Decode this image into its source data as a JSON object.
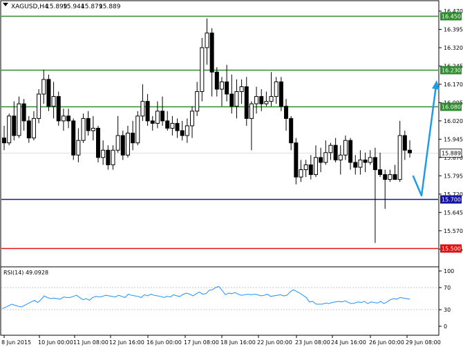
{
  "chart_data": [
    {
      "type": "candlestick",
      "symbol_title": "XAGUSD,H4",
      "ohlc_header": [
        "15.899",
        "15.944",
        "15.879",
        "15.889"
      ],
      "ylim": [
        15.425,
        16.47
      ],
      "y_ticks": [
        "16.470",
        "16.395",
        "16.320",
        "16.245",
        "16.170",
        "16.095",
        "16.020",
        "15.945",
        "15.870",
        "15.795",
        "15.720",
        "15.645",
        "15.570",
        "15.495"
      ],
      "x_ticks": [
        "8 Jun 2015",
        "10 Jun 00:00",
        "11 Jun 08:00",
        "12 Jun 16:00",
        "16 Jun 00:00",
        "17 Jun 08:00",
        "18 Jun 16:00",
        "22 Jun 00:00",
        "23 Jun 08:00",
        "24 Jun 16:00",
        "26 Jun 00:00",
        "29 Jun 08:00"
      ],
      "levels": [
        {
          "label": "16.450",
          "value": 16.45,
          "color": "#2e8b2e"
        },
        {
          "label": "16.230",
          "value": 16.23,
          "color": "#2e8b2e"
        },
        {
          "label": "16.080",
          "value": 16.08,
          "color": "#2e8b2e"
        },
        {
          "label": "15.700",
          "value": 15.7,
          "color": "#1414a0"
        },
        {
          "label": "15.500",
          "value": 15.5,
          "color": "#e01010"
        }
      ],
      "current_price": {
        "label": "15.889",
        "value": 15.889
      },
      "candles": [
        [
          15.95,
          16.0,
          15.9,
          15.93
        ],
        [
          15.93,
          16.05,
          15.92,
          16.04
        ],
        [
          16.04,
          16.1,
          15.94,
          15.96
        ],
        [
          15.96,
          16.12,
          15.95,
          16.09
        ],
        [
          16.09,
          16.11,
          15.98,
          16.02
        ],
        [
          16.02,
          16.04,
          15.93,
          15.95
        ],
        [
          15.95,
          16.06,
          15.94,
          16.03
        ],
        [
          16.03,
          16.15,
          16.01,
          16.13
        ],
        [
          16.13,
          16.23,
          16.09,
          16.19
        ],
        [
          16.19,
          16.21,
          16.06,
          16.08
        ],
        [
          16.08,
          16.18,
          16.03,
          16.12
        ],
        [
          16.12,
          16.14,
          16.0,
          16.02
        ],
        [
          16.02,
          16.07,
          15.98,
          16.04
        ],
        [
          16.04,
          16.07,
          15.99,
          16.02
        ],
        [
          16.02,
          16.03,
          15.86,
          15.88
        ],
        [
          15.88,
          15.99,
          15.85,
          15.94
        ],
        [
          15.94,
          16.05,
          15.93,
          16.03
        ],
        [
          16.03,
          16.06,
          15.96,
          15.98
        ],
        [
          15.98,
          16.04,
          15.94,
          15.99
        ],
        [
          15.99,
          16.0,
          15.85,
          15.87
        ],
        [
          15.87,
          15.94,
          15.84,
          15.9
        ],
        [
          15.9,
          15.92,
          15.82,
          15.84
        ],
        [
          15.84,
          15.92,
          15.82,
          15.9
        ],
        [
          15.9,
          16.04,
          15.89,
          15.96
        ],
        [
          15.96,
          15.98,
          15.86,
          15.88
        ],
        [
          15.88,
          16.0,
          15.87,
          15.97
        ],
        [
          15.97,
          16.02,
          15.9,
          15.93
        ],
        [
          15.93,
          16.06,
          15.92,
          16.04
        ],
        [
          16.04,
          16.17,
          16.02,
          16.1
        ],
        [
          16.1,
          16.13,
          16.0,
          16.02
        ],
        [
          16.02,
          16.04,
          15.98,
          16.01
        ],
        [
          16.01,
          16.1,
          15.99,
          16.06
        ],
        [
          16.06,
          16.12,
          16.0,
          16.02
        ],
        [
          16.02,
          16.06,
          15.98,
          15.99
        ],
        [
          15.99,
          16.04,
          15.96,
          16.01
        ],
        [
          16.01,
          16.03,
          15.95,
          15.98
        ],
        [
          15.98,
          16.02,
          15.94,
          15.96
        ],
        [
          15.96,
          16.03,
          15.93,
          16.0
        ],
        [
          16.0,
          16.08,
          15.95,
          16.06
        ],
        [
          16.06,
          16.18,
          16.04,
          16.14
        ],
        [
          16.14,
          16.36,
          16.1,
          16.32
        ],
        [
          16.32,
          16.44,
          16.25,
          16.38
        ],
        [
          16.38,
          16.4,
          16.12,
          16.22
        ],
        [
          16.22,
          16.24,
          16.12,
          16.15
        ],
        [
          16.15,
          16.2,
          16.08,
          16.18
        ],
        [
          16.18,
          16.25,
          16.1,
          16.13
        ],
        [
          16.13,
          16.21,
          16.05,
          16.08
        ],
        [
          16.08,
          16.19,
          16.03,
          16.14
        ],
        [
          16.14,
          16.19,
          16.09,
          16.16
        ],
        [
          16.16,
          16.2,
          16.0,
          16.03
        ],
        [
          16.03,
          16.1,
          15.9,
          16.09
        ],
        [
          16.09,
          16.16,
          16.05,
          16.12
        ],
        [
          16.12,
          16.15,
          16.06,
          16.09
        ],
        [
          16.09,
          16.14,
          16.08,
          16.1
        ],
        [
          16.1,
          16.22,
          16.08,
          16.12
        ],
        [
          16.12,
          16.2,
          16.09,
          16.18
        ],
        [
          16.18,
          16.2,
          16.06,
          16.08
        ],
        [
          16.08,
          16.11,
          15.98,
          16.03
        ],
        [
          16.03,
          16.04,
          15.9,
          15.93
        ],
        [
          15.93,
          15.95,
          15.76,
          15.79
        ],
        [
          15.79,
          15.86,
          15.77,
          15.82
        ],
        [
          15.82,
          15.86,
          15.79,
          15.84
        ],
        [
          15.84,
          15.88,
          15.78,
          15.8
        ],
        [
          15.8,
          15.92,
          15.79,
          15.87
        ],
        [
          15.87,
          15.91,
          15.81,
          15.85
        ],
        [
          15.85,
          15.94,
          15.84,
          15.89
        ],
        [
          15.89,
          15.93,
          15.86,
          15.92
        ],
        [
          15.92,
          15.95,
          15.85,
          15.86
        ],
        [
          15.86,
          15.92,
          15.8,
          15.88
        ],
        [
          15.88,
          15.96,
          15.86,
          15.94
        ],
        [
          15.94,
          15.95,
          15.82,
          15.85
        ],
        [
          15.85,
          15.88,
          15.8,
          15.83
        ],
        [
          15.83,
          15.9,
          15.8,
          15.86
        ],
        [
          15.86,
          15.89,
          15.81,
          15.85
        ],
        [
          15.85,
          15.9,
          15.84,
          15.87
        ],
        [
          15.87,
          15.91,
          15.52,
          15.82
        ],
        [
          15.82,
          15.89,
          15.79,
          15.8
        ],
        [
          15.8,
          15.82,
          15.66,
          15.78
        ],
        [
          15.78,
          15.82,
          15.77,
          15.8
        ],
        [
          15.8,
          15.84,
          15.78,
          15.78
        ],
        [
          15.78,
          16.02,
          15.77,
          15.96
        ],
        [
          15.96,
          15.98,
          15.86,
          15.9
        ],
        [
          15.9,
          15.94,
          15.87,
          15.889
        ]
      ],
      "rsi": {
        "label": "RSI(14) 49.0928",
        "ylim": [
          0,
          100
        ],
        "y_ticks": [
          "100",
          "70",
          "30",
          "0"
        ],
        "values": [
          32,
          34,
          37,
          40,
          38,
          36,
          35,
          38,
          41,
          44,
          47,
          43,
          48,
          55,
          52,
          50,
          51,
          50,
          49,
          53,
          52,
          52,
          54,
          56,
          52,
          48,
          50,
          47,
          52,
          54,
          53,
          54,
          56,
          55,
          54,
          53,
          56,
          54,
          52,
          58,
          56,
          55,
          54,
          52,
          57,
          55,
          58,
          56,
          55,
          54,
          52,
          54,
          53,
          57,
          55,
          54,
          58,
          60,
          58,
          55,
          59,
          62,
          58,
          59,
          65,
          66,
          70,
          72,
          65,
          57,
          60,
          59,
          61,
          58,
          56,
          57,
          58,
          57,
          58,
          57,
          55,
          56,
          58,
          54,
          55,
          56,
          57,
          55,
          56,
          62,
          66,
          63,
          60,
          56,
          52,
          44,
          45,
          40,
          40,
          40,
          42,
          41,
          43,
          44,
          45,
          44,
          46,
          43,
          41,
          42,
          44,
          43,
          45,
          41,
          44,
          43,
          42,
          45,
          41,
          44,
          48,
          50,
          49,
          52,
          51,
          50,
          49
        ]
      },
      "annotation": {
        "type": "arrow",
        "color": "#1e9be8"
      }
    }
  ]
}
